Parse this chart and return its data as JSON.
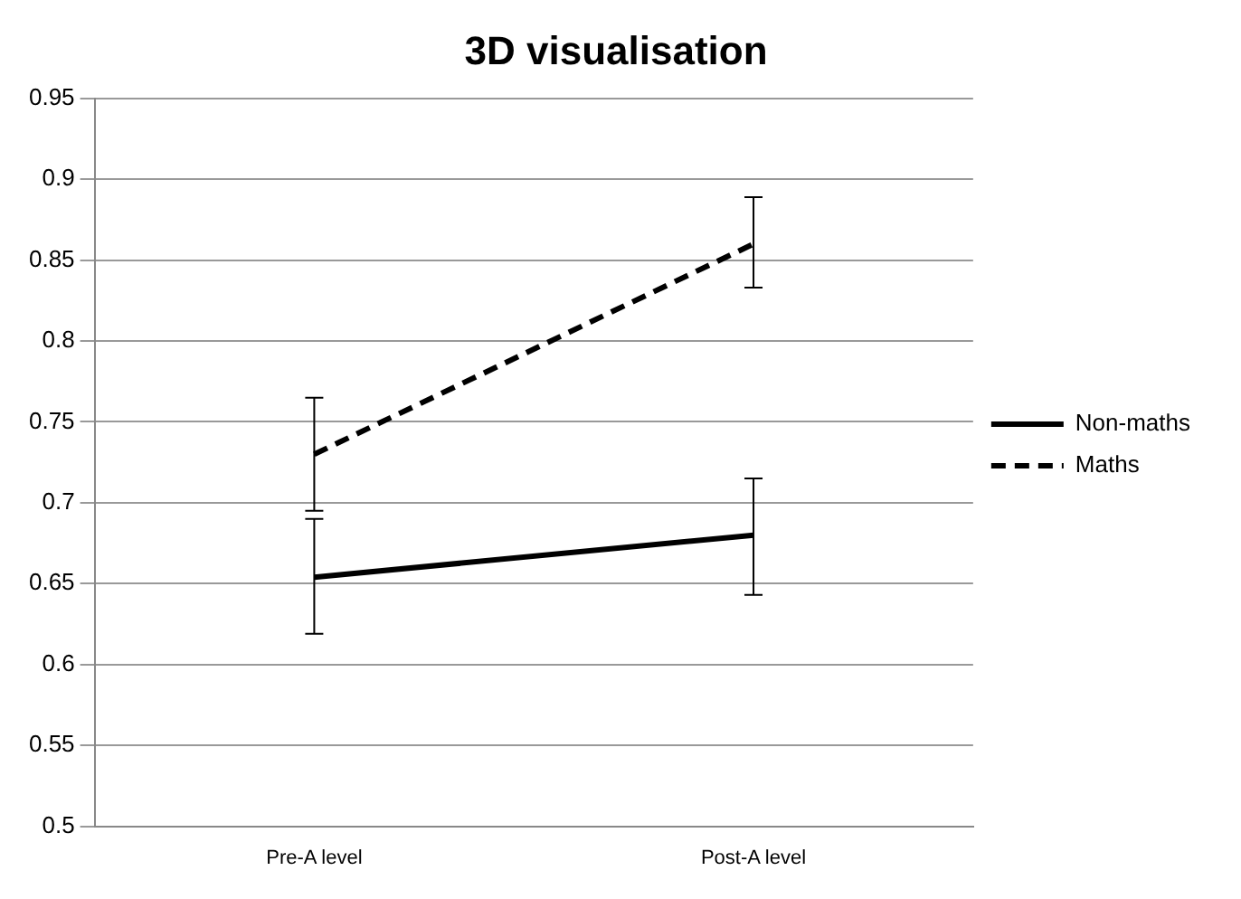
{
  "chart_data": {
    "type": "line",
    "title": "3D visualisation",
    "categories": [
      "Pre-A level",
      "Post-A level"
    ],
    "series": [
      {
        "name": "Non-maths",
        "color": "#000000",
        "line_style": "solid",
        "values": [
          0.654,
          0.68
        ],
        "errors": [
          [
            0.619,
            0.69
          ],
          [
            0.643,
            0.715
          ]
        ]
      },
      {
        "name": "Maths",
        "color": "#000000",
        "line_style": "dashed",
        "values": [
          0.73,
          0.86
        ],
        "errors": [
          [
            0.695,
            0.765
          ],
          [
            0.833,
            0.889
          ]
        ]
      }
    ],
    "ylim": [
      0.5,
      0.95
    ],
    "yticks": [
      0.5,
      0.55,
      0.6,
      0.65,
      0.7,
      0.75,
      0.8,
      0.85,
      0.9,
      0.95
    ],
    "grid": "y",
    "legend": "right",
    "marker": "none"
  }
}
